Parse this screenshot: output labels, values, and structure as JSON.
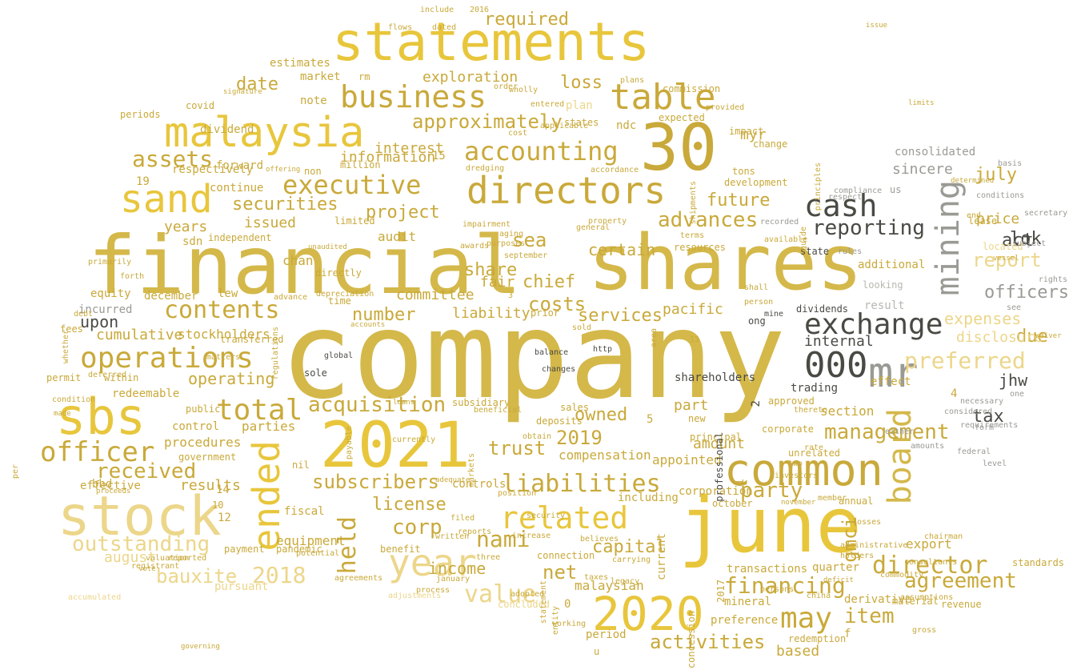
{
  "palette": {
    "gold": "#d4b84a",
    "gold_light": "#ecd68a",
    "gold_deep": "#c9a93a",
    "yellow": "#e8c63c",
    "dark": "#4a4a45",
    "gray": "#9a9a95",
    "gray_light": "#b8b8b0"
  },
  "words": [
    "company",
    "shares",
    "financial",
    "june",
    "30",
    "statements",
    "2021",
    "2020",
    "malaysia",
    "stock",
    "sbs",
    "common",
    "directors",
    "year",
    "mining",
    "sand",
    "mr",
    "000",
    "exchange",
    "cash",
    "table",
    "ended",
    "board",
    "executive",
    "accounting",
    "operations",
    "business",
    "related",
    "liabilities",
    "total",
    "officer",
    "nami",
    "director",
    "agreement",
    "may",
    "acquisition",
    "preferred",
    "financing",
    "management",
    "reporting",
    "contents",
    "2018",
    "assets",
    "value",
    "outstanding",
    "advances",
    "held",
    "approximately",
    "securities",
    "activities",
    "received",
    "net",
    "item",
    "report",
    "costs",
    "2019",
    "subscribers",
    "party",
    "trust",
    "bauxite",
    "corp",
    "license",
    "sea",
    "capital",
    "income",
    "project",
    "loss",
    "date",
    "required",
    "interest",
    "officers",
    "chief",
    "future",
    "expenses",
    "services",
    "certain",
    "owned",
    "share",
    "operating",
    "equipment",
    "tax",
    "lok",
    "act",
    "due",
    "jhw",
    "july",
    "compensation",
    "procedures",
    "results",
    "number",
    "liability",
    "upon",
    "cumulative",
    "stockholders",
    "committee",
    "information",
    "issued",
    "years",
    "exploration",
    "plan",
    "august",
    "myr",
    "gmci",
    "sincere",
    "consolidated",
    "price",
    "pacific",
    "internal",
    "disclosure",
    "amount",
    "appointed",
    "corporation",
    "part",
    "section",
    "export",
    "transactions",
    "quarter",
    "mineral",
    "preference",
    "redemption",
    "based",
    "fair",
    "audit",
    "chan",
    "sdn",
    "lew",
    "december",
    "equity",
    "incurred",
    "redeemable",
    "control",
    "parties",
    "bhd",
    "effective",
    "malaysian",
    "including",
    "controls",
    "fiscal",
    "note",
    "market",
    "estimates",
    "dividend",
    "respectively",
    "forward",
    "continue",
    "independent",
    "ndc",
    "resources",
    "development",
    "state",
    "trading",
    "effect",
    "additional",
    "result",
    "looking",
    "subsidiary",
    "public",
    "government",
    "permit",
    "within",
    "pursuant",
    "material",
    "current",
    "new",
    "principal",
    "unrelated",
    "corporate",
    "approved",
    "annual",
    "lease",
    "located",
    "ong",
    "dividends",
    "transferred",
    "fees",
    "sole",
    "payment",
    "pandemic",
    "nil",
    "benefit",
    "connection",
    "sales",
    "deposits",
    "prior",
    "million",
    "limited",
    "directly",
    "time",
    "non",
    "rm",
    "covid",
    "periods",
    "commission",
    "2016",
    "include",
    "dated",
    "flows",
    "states",
    "expected",
    "impact",
    "change",
    "tons",
    "us",
    "basis",
    "recorded",
    "rules",
    "derivative",
    "revenue",
    "standards",
    "one",
    "necessary",
    "professional",
    "shareholders",
    "13",
    "3",
    "4",
    "5",
    "2",
    "1",
    "10",
    "12",
    "14",
    "15",
    "19",
    "0",
    "f",
    "u",
    "period",
    "concession",
    "2017",
    "october",
    "shall",
    "area",
    "person",
    "general",
    "property",
    "terms",
    "provided",
    "whether",
    "member",
    "two",
    "thereto",
    "rate",
    "amounts",
    "level",
    "federal",
    "end",
    "secretary",
    "rights",
    "see",
    "mine",
    "global",
    "http",
    "balance",
    "changes",
    "depreciation",
    "advance",
    "regulations",
    "per",
    "forth",
    "primarily",
    "adjustments",
    "process",
    "concluded",
    "working",
    "entity",
    "adopted",
    "statement",
    "valuation",
    "reported",
    "registrant",
    "agreements",
    "potential",
    "january",
    "obtain",
    "position",
    "reports",
    "increase",
    "three",
    "filed",
    "markets",
    "written",
    "beneficial",
    "security",
    "believes",
    "carrying",
    "currently",
    "condition",
    "payable",
    "deferred",
    "matters",
    "debt",
    "wholly",
    "plans",
    "order",
    "entered",
    "applicable",
    "cost",
    "compliance",
    "respect",
    "available",
    "guide",
    "principles",
    "conditions",
    "shipments",
    "dredging",
    "purposes",
    "aging",
    "impairment",
    "awards",
    "september",
    "accumulated",
    "china",
    "gross",
    "losses",
    "assumptions",
    "consultants",
    "chairman",
    "administrative",
    "either",
    "considered",
    "requirements",
    "accordance",
    "subject",
    "sold",
    "form",
    "investors",
    "holders",
    "commodity",
    "persons",
    "legacy",
    "taxes",
    "november",
    "deficit",
    "issue",
    "limits",
    "determined",
    "vessel",
    "waiver",
    "made",
    "proceeds",
    "vote",
    "governing",
    "signature",
    "offering",
    "unaudited",
    "accounts",
    "loans",
    "adequate"
  ]
}
